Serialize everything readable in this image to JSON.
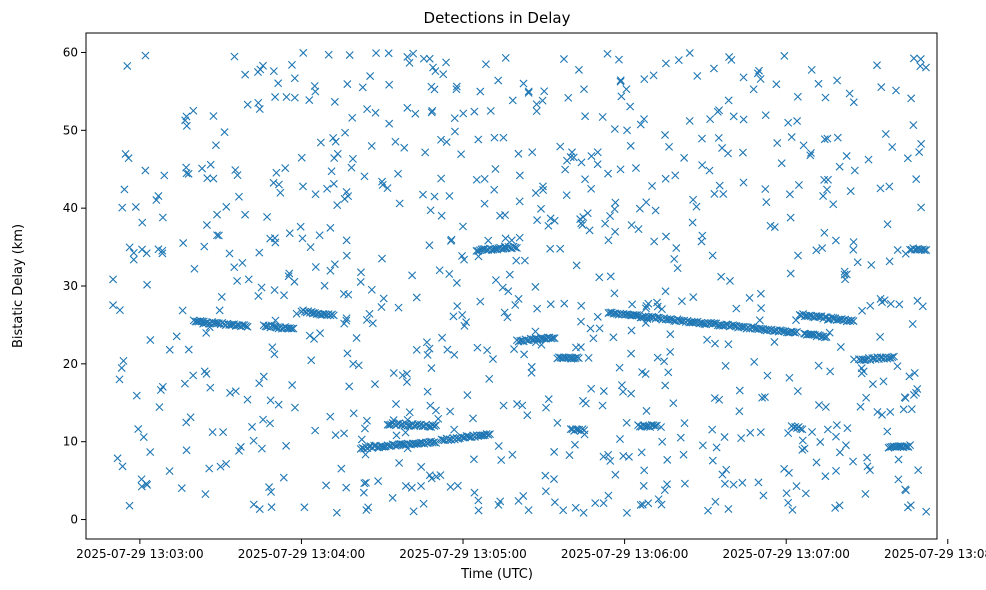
{
  "chart_data": {
    "type": "scatter",
    "title": "Detections in Delay",
    "xlabel": "Time (UTC)",
    "ylabel": "Bistatic Delay (km)",
    "x_unit": "seconds after 2025-07-29 13:02:40",
    "xlim": [
      0,
      316
    ],
    "ylim": [
      -2.5,
      62.5
    ],
    "x_ticks": [
      {
        "value": 20,
        "label": "2025-07-29 13:03:00"
      },
      {
        "value": 80,
        "label": "2025-07-29 13:04:00"
      },
      {
        "value": 140,
        "label": "2025-07-29 13:05:00"
      },
      {
        "value": 200,
        "label": "2025-07-29 13:06:00"
      },
      {
        "value": 260,
        "label": "2025-07-29 13:07:00"
      },
      {
        "value": 320,
        "label": "2025-07-29 13:08:00"
      }
    ],
    "y_ticks": [
      {
        "value": 0,
        "label": "0"
      },
      {
        "value": 10,
        "label": "10"
      },
      {
        "value": 20,
        "label": "20"
      },
      {
        "value": 30,
        "label": "30"
      },
      {
        "value": 40,
        "label": "40"
      },
      {
        "value": 50,
        "label": "50"
      },
      {
        "value": 60,
        "label": "60"
      }
    ],
    "marker": "x",
    "color": "#1f77b4",
    "grid": false,
    "series": [
      {
        "tracks": [
          {
            "x0": 40,
            "x1": 60,
            "y0": 25.5,
            "y1": 24.8
          },
          {
            "x0": 66,
            "x1": 77,
            "y0": 24.9,
            "y1": 24.5
          },
          {
            "x0": 80,
            "x1": 92,
            "y0": 26.8,
            "y1": 26.2
          },
          {
            "x0": 102,
            "x1": 130,
            "y0": 9.2,
            "y1": 10.0
          },
          {
            "x0": 112,
            "x1": 130,
            "y0": 12.3,
            "y1": 12.0
          },
          {
            "x0": 132,
            "x1": 150,
            "y0": 10.2,
            "y1": 11.0
          },
          {
            "x0": 145,
            "x1": 160,
            "y0": 34.6,
            "y1": 35.0
          },
          {
            "x0": 160,
            "x1": 174,
            "y0": 22.9,
            "y1": 23.4
          },
          {
            "x0": 175,
            "x1": 183,
            "y0": 20.8,
            "y1": 20.8
          },
          {
            "x0": 180,
            "x1": 185,
            "y0": 11.5,
            "y1": 11.5
          },
          {
            "x0": 194,
            "x1": 264,
            "y0": 26.5,
            "y1": 24.0
          },
          {
            "x0": 205,
            "x1": 212,
            "y0": 12.0,
            "y1": 12.0
          },
          {
            "x0": 265,
            "x1": 285,
            "y0": 26.3,
            "y1": 25.5
          },
          {
            "x0": 267,
            "x1": 275,
            "y0": 23.8,
            "y1": 23.5
          },
          {
            "x0": 287,
            "x1": 300,
            "y0": 20.5,
            "y1": 20.9
          },
          {
            "x0": 298,
            "x1": 306,
            "y0": 9.2,
            "y1": 9.5
          },
          {
            "x0": 306,
            "x1": 312,
            "y0": 34.8,
            "y1": 34.6
          },
          {
            "x0": 262,
            "x1": 266,
            "y0": 11.9,
            "y1": 11.7
          }
        ],
        "clutter_count": 820,
        "time_range": [
          10,
          312
        ],
        "delay_range": [
          0.8,
          60
        ]
      }
    ]
  }
}
